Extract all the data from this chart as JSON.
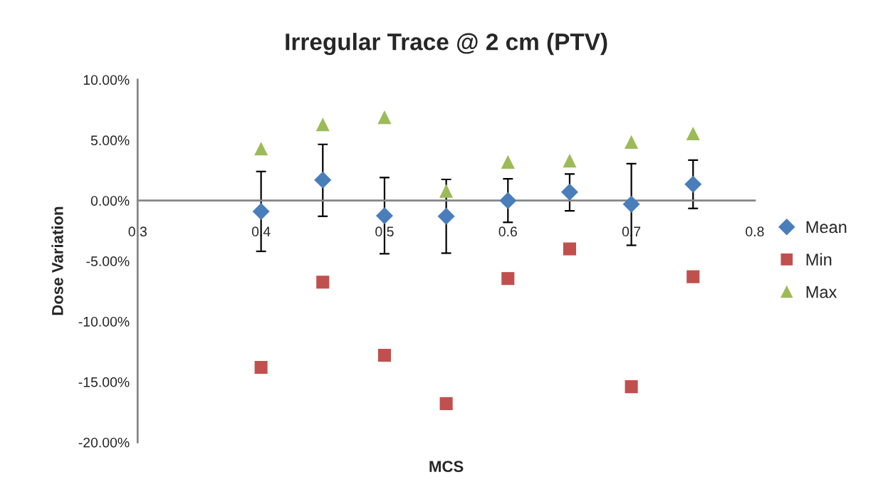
{
  "chart_data": {
    "type": "scatter",
    "title": "Irregular Trace @ 2 cm (PTV)",
    "xlabel": "MCS",
    "ylabel": "Dose Variation",
    "x": [
      0.4,
      0.45,
      0.5,
      0.55,
      0.6,
      0.65,
      0.7,
      0.75
    ],
    "series": [
      {
        "name": "Mean",
        "color": "#4a7ebb",
        "marker": "diamond",
        "values": [
          -0.9,
          1.7,
          -1.25,
          -1.3,
          0.0,
          0.7,
          -0.3,
          1.35
        ],
        "errors": [
          [
            -4.2,
            2.4
          ],
          [
            -1.3,
            4.65
          ],
          [
            -4.4,
            1.9
          ],
          [
            -4.35,
            1.75
          ],
          [
            -1.8,
            1.8
          ],
          [
            -0.85,
            2.2
          ],
          [
            -3.7,
            3.05
          ],
          [
            -0.65,
            3.35
          ]
        ]
      },
      {
        "name": "Min",
        "color": "#c0504d",
        "marker": "square",
        "values": [
          -13.8,
          -6.75,
          -12.8,
          -16.8,
          -6.45,
          -4.0,
          -15.4,
          -6.3
        ]
      },
      {
        "name": "Max",
        "color": "#9bbb59",
        "marker": "triangle",
        "values": [
          4.3,
          6.3,
          6.9,
          0.8,
          3.2,
          3.3,
          4.85,
          5.55
        ]
      }
    ],
    "xlim": [
      0.3,
      0.8
    ],
    "xticks": [
      0.3,
      0.4,
      0.5,
      0.6,
      0.7,
      0.8
    ],
    "ylim": [
      -20,
      10
    ],
    "yticks": [
      {
        "value": -20,
        "label": "-20.00%"
      },
      {
        "value": -15,
        "label": "-15.00%"
      },
      {
        "value": -10,
        "label": "-10.00%"
      },
      {
        "value": -5,
        "label": "-5.00%"
      },
      {
        "value": 0,
        "label": "0.00%"
      },
      {
        "value": 5,
        "label": "5.00%"
      },
      {
        "value": 10,
        "label": "10.00%"
      }
    ],
    "grid": false,
    "legend": "right"
  }
}
